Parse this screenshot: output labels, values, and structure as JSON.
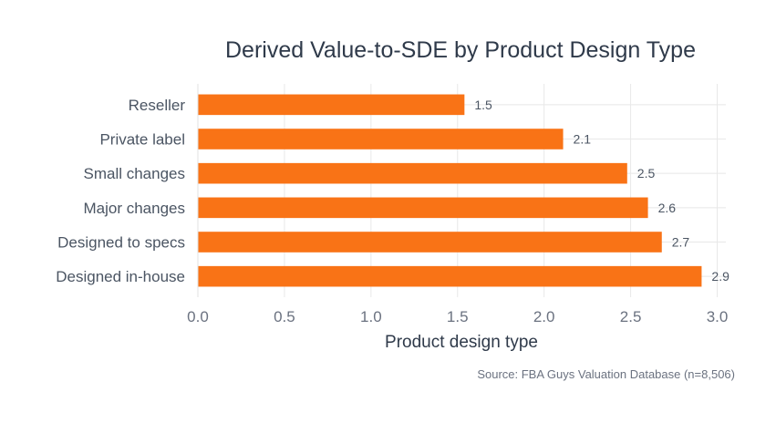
{
  "chart_data": {
    "type": "bar",
    "orientation": "horizontal",
    "title": "Derived Value-to-SDE by Product Design Type",
    "xlabel": "Product design type",
    "ylabel": "",
    "categories": [
      "Reseller",
      "Private label",
      "Small changes",
      "Major changes",
      "Designed to specs",
      "Designed in-house"
    ],
    "values": [
      1.54,
      2.11,
      2.48,
      2.6,
      2.68,
      2.91
    ],
    "value_labels": [
      "1.5",
      "2.1",
      "2.5",
      "2.6",
      "2.7",
      "2.9"
    ],
    "xlim": [
      0,
      3.05
    ],
    "xticks": [
      0,
      0.5,
      1,
      1.5,
      2,
      2.5,
      3
    ],
    "xtick_labels": [
      "0.0",
      "0.5",
      "1.0",
      "1.5",
      "2.0",
      "2.5",
      "3.0"
    ],
    "bar_color": "#f97316",
    "grid": true,
    "source": "Source: FBA Guys Valuation Database (n=8,506)"
  }
}
